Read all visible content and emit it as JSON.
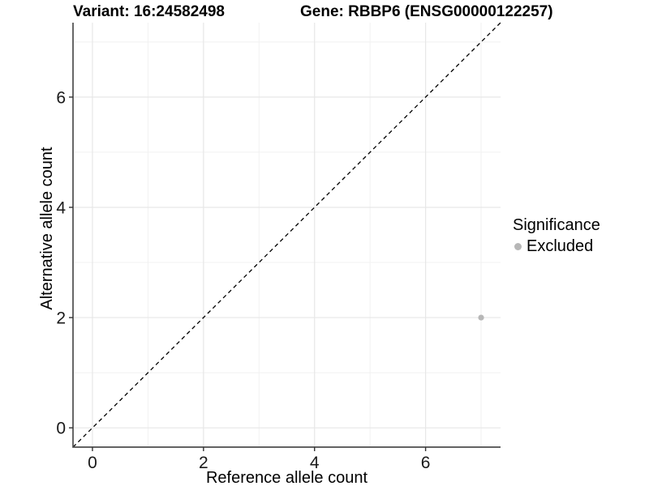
{
  "chart_data": {
    "type": "scatter",
    "title_left": "Variant: 16:24582498",
    "title_right": "Gene: RBBP6 (ENSG00000122257)",
    "xlabel": "Reference allele count",
    "ylabel": "Alternative allele count",
    "xlim": [
      -0.35,
      7.35
    ],
    "ylim": [
      -0.35,
      7.35
    ],
    "x_major_ticks": [
      0,
      2,
      4,
      6
    ],
    "y_major_ticks": [
      0,
      2,
      4,
      6
    ],
    "x_minor_ticks": [
      1,
      3,
      5,
      7
    ],
    "y_minor_ticks": [
      1,
      3,
      5,
      7
    ],
    "grid": "major+minor",
    "identity_line": {
      "slope": 1,
      "intercept": 0,
      "style": "dashed",
      "color": "#000000"
    },
    "series": [
      {
        "name": "Excluded",
        "color": "#b7b7b7",
        "points": [
          {
            "x": 7,
            "y": 2
          }
        ]
      }
    ],
    "legend": {
      "title": "Significance",
      "position": "right",
      "items": [
        {
          "label": "Excluded",
          "color": "#b7b7b7"
        }
      ]
    },
    "colors": {
      "grid_major": "#e7e7e7",
      "grid_minor": "#f1f1f1",
      "axis_line": "#4d4d4d",
      "tick_mark": "#333333",
      "tick_text": "#1a1a1a"
    }
  }
}
